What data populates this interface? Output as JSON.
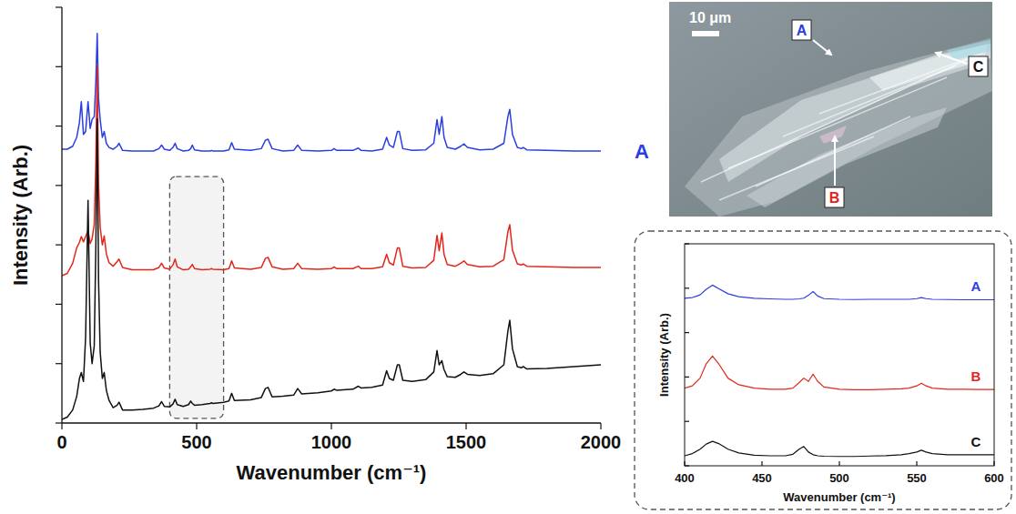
{
  "chart_data": [
    {
      "type": "line",
      "x_label": "Wavenumber (cm⁻¹)",
      "y_label": "Intensity (Arb.)",
      "x": [
        0,
        20,
        40,
        55,
        65,
        72,
        80,
        88,
        97,
        105,
        112,
        120,
        126,
        131,
        136,
        142,
        150,
        157,
        165,
        175,
        190,
        205,
        212,
        225,
        260,
        300,
        340,
        360,
        370,
        380,
        400,
        412,
        420,
        428,
        450,
        470,
        478,
        484,
        492,
        520,
        550,
        555,
        560,
        600,
        620,
        630,
        640,
        700,
        740,
        755,
        765,
        780,
        820,
        860,
        875,
        890,
        950,
        1000,
        1010,
        1020,
        1080,
        1100,
        1110,
        1150,
        1190,
        1205,
        1215,
        1230,
        1245,
        1252,
        1265,
        1300,
        1350,
        1380,
        1392,
        1400,
        1410,
        1418,
        1430,
        1460,
        1480,
        1492,
        1505,
        1550,
        1600,
        1640,
        1655,
        1662,
        1672,
        1690,
        1705,
        1712,
        1725,
        1800,
        1900,
        2000
      ],
      "series": [
        {
          "name": "A",
          "color": "#2b3ee0",
          "values": [
            4.61,
            4.61,
            4.66,
            4.81,
            5.06,
            5.41,
            4.86,
            4.91,
            5.41,
            4.96,
            5.11,
            5.16,
            5.76,
            6.56,
            5.46,
            5.11,
            4.81,
            4.91,
            4.71,
            4.64,
            4.61,
            4.66,
            4.71,
            4.59,
            4.58,
            4.58,
            4.58,
            4.62,
            4.68,
            4.61,
            4.59,
            4.64,
            4.71,
            4.62,
            4.58,
            4.59,
            4.62,
            4.68,
            4.6,
            4.58,
            4.58,
            4.59,
            4.58,
            4.58,
            4.6,
            4.72,
            4.61,
            4.59,
            4.62,
            4.76,
            4.78,
            4.62,
            4.58,
            4.59,
            4.68,
            4.59,
            4.58,
            4.59,
            4.62,
            4.59,
            4.59,
            4.63,
            4.59,
            4.58,
            4.61,
            4.81,
            4.68,
            4.64,
            4.91,
            4.91,
            4.62,
            4.59,
            4.6,
            4.71,
            5.11,
            4.86,
            5.16,
            4.81,
            4.64,
            4.61,
            4.66,
            4.7,
            4.64,
            4.6,
            4.61,
            4.71,
            5.16,
            5.28,
            4.86,
            4.64,
            4.62,
            4.64,
            4.6,
            4.59,
            4.58,
            4.58
          ]
        },
        {
          "name": "B",
          "color": "#e3261c",
          "values": [
            2.48,
            2.52,
            2.69,
            2.95,
            3.04,
            3.14,
            3.05,
            3.14,
            3.24,
            3.02,
            3.1,
            3.35,
            4.4,
            6.0,
            4.0,
            3.3,
            3.0,
            3.15,
            2.85,
            2.7,
            2.64,
            2.72,
            2.76,
            2.62,
            2.58,
            2.58,
            2.58,
            2.62,
            2.69,
            2.61,
            2.59,
            2.66,
            2.76,
            2.63,
            2.58,
            2.59,
            2.63,
            2.67,
            2.6,
            2.58,
            2.59,
            2.6,
            2.59,
            2.58,
            2.6,
            2.73,
            2.61,
            2.59,
            2.62,
            2.77,
            2.79,
            2.63,
            2.59,
            2.6,
            2.69,
            2.6,
            2.59,
            2.6,
            2.63,
            2.6,
            2.6,
            2.64,
            2.6,
            2.6,
            2.63,
            2.84,
            2.7,
            2.66,
            2.95,
            2.95,
            2.64,
            2.61,
            2.62,
            2.74,
            3.16,
            2.9,
            3.2,
            2.84,
            2.67,
            2.64,
            2.69,
            2.73,
            2.67,
            2.63,
            2.64,
            2.75,
            3.22,
            3.34,
            2.91,
            2.68,
            2.66,
            2.68,
            2.64,
            2.63,
            2.62,
            2.62
          ]
        },
        {
          "name": "C",
          "color": "#111111",
          "values": [
            0.06,
            0.1,
            0.22,
            0.45,
            0.75,
            0.85,
            0.7,
            1.45,
            3.75,
            1.35,
            1.0,
            1.3,
            3.0,
            5.12,
            2.4,
            1.2,
            0.75,
            0.85,
            0.55,
            0.38,
            0.26,
            0.3,
            0.35,
            0.22,
            0.22,
            0.23,
            0.25,
            0.29,
            0.36,
            0.28,
            0.27,
            0.32,
            0.4,
            0.31,
            0.28,
            0.31,
            0.37,
            0.33,
            0.3,
            0.31,
            0.33,
            0.34,
            0.33,
            0.35,
            0.37,
            0.5,
            0.38,
            0.39,
            0.43,
            0.58,
            0.6,
            0.44,
            0.45,
            0.47,
            0.58,
            0.49,
            0.51,
            0.54,
            0.57,
            0.55,
            0.57,
            0.62,
            0.59,
            0.6,
            0.64,
            0.88,
            0.75,
            0.72,
            0.98,
            0.98,
            0.72,
            0.7,
            0.73,
            0.86,
            1.22,
            0.98,
            1.05,
            0.9,
            0.78,
            0.77,
            0.82,
            0.86,
            0.82,
            0.8,
            0.83,
            0.98,
            1.55,
            1.73,
            1.25,
            0.95,
            0.93,
            0.95,
            0.91,
            0.92,
            0.95,
            0.98
          ]
        }
      ],
      "xlim": [
        0,
        2000
      ],
      "xticks": [
        0,
        500,
        1000,
        1500,
        2000
      ],
      "ylim": [
        0,
        7
      ],
      "yticks": [
        0,
        1,
        2,
        3,
        4,
        5,
        6,
        7
      ],
      "tick_labels": "x",
      "highlight_range": {
        "x": [
          400,
          600
        ],
        "y": [
          0.08,
          4.15
        ]
      }
    },
    {
      "type": "line",
      "x_label": "Wavenumber (cm⁻¹)",
      "y_label": "Intensity (Arb.)",
      "x": [
        400,
        405,
        410,
        414,
        418,
        422,
        428,
        435,
        445,
        455,
        465,
        470,
        474,
        477,
        480,
        483,
        486,
        490,
        500,
        510,
        520,
        530,
        540,
        545,
        550,
        553,
        556,
        560,
        570,
        580,
        590,
        600
      ],
      "series": [
        {
          "name": "A",
          "color": "#2b3ee0",
          "values": [
            7.55,
            7.58,
            7.7,
            7.95,
            8.14,
            7.98,
            7.75,
            7.62,
            7.55,
            7.52,
            7.5,
            7.5,
            7.52,
            7.55,
            7.68,
            7.85,
            7.65,
            7.53,
            7.5,
            7.49,
            7.5,
            7.5,
            7.5,
            7.5,
            7.53,
            7.58,
            7.53,
            7.5,
            7.49,
            7.48,
            7.48,
            7.48
          ]
        },
        {
          "name": "B",
          "color": "#e3261c",
          "values": [
            3.5,
            3.6,
            3.95,
            4.6,
            4.94,
            4.6,
            3.95,
            3.65,
            3.5,
            3.45,
            3.45,
            3.5,
            3.75,
            3.95,
            3.8,
            4.13,
            3.8,
            3.55,
            3.45,
            3.43,
            3.43,
            3.45,
            3.47,
            3.5,
            3.6,
            3.72,
            3.6,
            3.5,
            3.45,
            3.45,
            3.44,
            3.44
          ]
        },
        {
          "name": "C",
          "color": "#111111",
          "values": [
            0.45,
            0.55,
            0.75,
            0.98,
            1.1,
            1.0,
            0.75,
            0.58,
            0.48,
            0.45,
            0.45,
            0.52,
            0.75,
            0.87,
            0.62,
            0.5,
            0.45,
            0.43,
            0.42,
            0.42,
            0.44,
            0.46,
            0.5,
            0.55,
            0.62,
            0.7,
            0.62,
            0.55,
            0.5,
            0.5,
            0.5,
            0.5
          ]
        }
      ],
      "xlim": [
        400,
        600
      ],
      "xticks": [
        400,
        450,
        500,
        550,
        600
      ],
      "ylim": [
        0,
        10
      ],
      "yticks": [
        0,
        2,
        4,
        6,
        8,
        10
      ],
      "tick_labels": "x"
    }
  ],
  "image": {
    "scale_bar": "10 μm",
    "labels": [
      {
        "text": "A",
        "color": "#2b3ee0"
      },
      {
        "text": "C",
        "color": "#111111"
      },
      {
        "text": "B",
        "color": "#e3261c"
      }
    ]
  }
}
